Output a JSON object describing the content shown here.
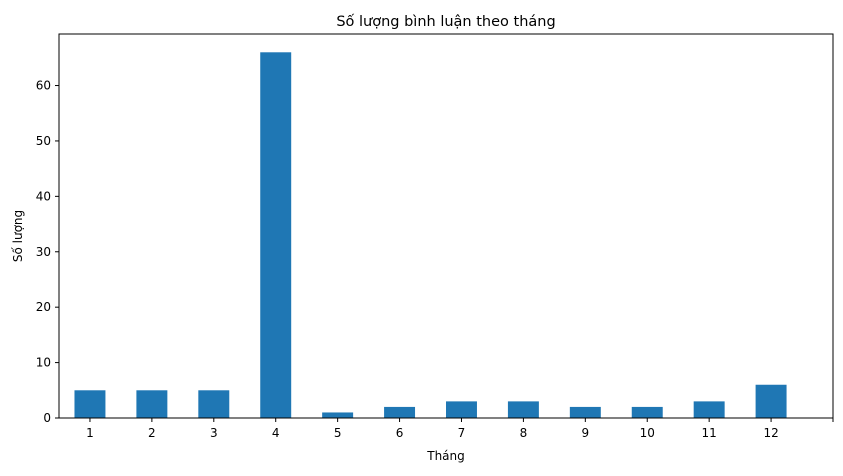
{
  "chart_data": {
    "type": "bar",
    "title": "Số lượng bình luận theo tháng",
    "xlabel": "Tháng",
    "ylabel": "Số lượng",
    "categories": [
      "1",
      "2",
      "3",
      "4",
      "5",
      "6",
      "7",
      "8",
      "9",
      "10",
      "11",
      "12"
    ],
    "values": [
      5,
      5,
      5,
      66,
      1,
      2,
      3,
      3,
      2,
      2,
      3,
      6
    ],
    "ylim": [
      0,
      69.3
    ],
    "yticks": [
      0,
      10,
      20,
      30,
      40,
      50,
      60
    ],
    "grid": false,
    "legend": "none",
    "bar_color": "#1f77b4"
  }
}
